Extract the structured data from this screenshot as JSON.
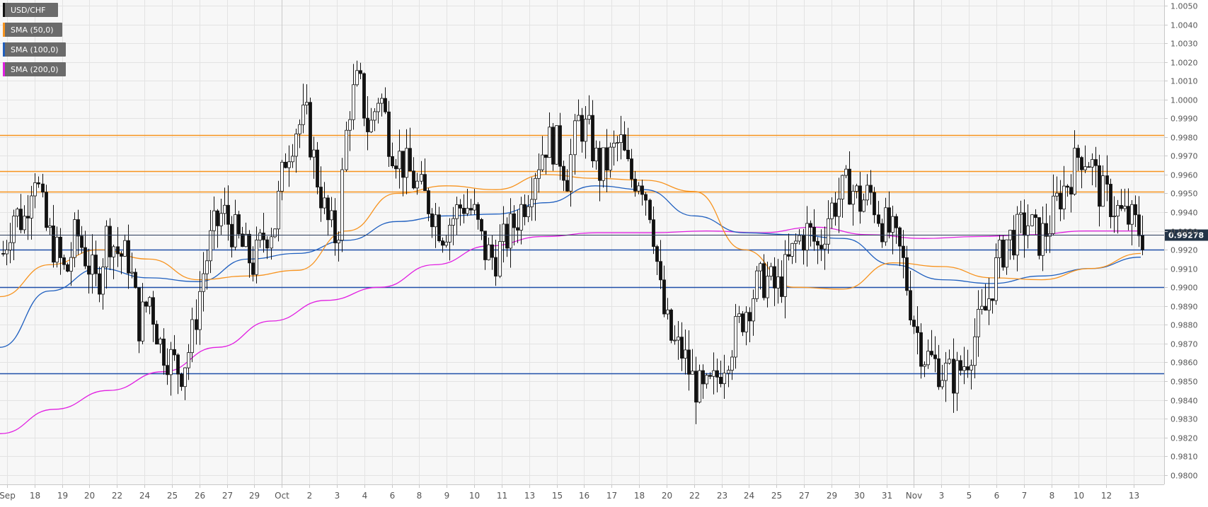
{
  "chart_data": {
    "type": "candlestick",
    "symbol": "USD/CHF",
    "legend": [
      {
        "label": "USD/CHF",
        "color": "#111111"
      },
      {
        "label": "SMA (50,0)",
        "color": "#f7931e"
      },
      {
        "label": "SMA (100,0)",
        "color": "#1f5fbf"
      },
      {
        "label": "SMA (200,0)",
        "color": "#e11ee1"
      }
    ],
    "legend_position": "top-left",
    "grid": true,
    "y_axis": {
      "position": "right",
      "range": [
        0.9795,
        1.0053
      ],
      "ticks": [
        "0.9800",
        "0.9810",
        "0.9820",
        "0.9830",
        "0.9840",
        "0.9850",
        "0.9860",
        "0.9870",
        "0.9880",
        "0.9890",
        "0.9900",
        "0.9910",
        "0.9920",
        "0.9930",
        "0.9940",
        "0.9950",
        "0.9960",
        "0.9970",
        "0.9980",
        "0.9990",
        "1.0000",
        "1.0010",
        "1.0020",
        "1.0030",
        "1.0040",
        "1.0050"
      ]
    },
    "x_axis": {
      "labels": [
        "Sep",
        "18",
        "19",
        "20",
        "22",
        "24",
        "25",
        "26",
        "27",
        "29",
        "Oct",
        "2",
        "3",
        "4",
        "6",
        "8",
        "9",
        "10",
        "11",
        "13",
        "15",
        "16",
        "17",
        "18",
        "20",
        "22",
        "23",
        "24",
        "25",
        "27",
        "29",
        "30",
        "31",
        "Nov",
        "3",
        "5",
        "6",
        "7",
        "8",
        "10",
        "12",
        "13"
      ],
      "separators": [
        "Oct",
        "Nov"
      ]
    },
    "current_price": {
      "label": "0.99278",
      "value": 0.99278
    },
    "horizontal_levels": [
      {
        "value": 0.9981,
        "color": "#f7931e"
      },
      {
        "value": 0.9962,
        "color": "#f7931e"
      },
      {
        "value": 0.9951,
        "color": "#f7931e"
      },
      {
        "value": 0.992,
        "color": "#1f4fa8"
      },
      {
        "value": 0.99,
        "color": "#1f4fa8"
      },
      {
        "value": 0.9854,
        "color": "#1f4fa8"
      }
    ],
    "price_path": [
      0.9918,
      0.994,
      0.9935,
      0.9965,
      0.9932,
      0.992,
      0.9906,
      0.993,
      0.9915,
      0.99,
      0.993,
      0.9918,
      0.9915,
      0.988,
      0.9895,
      0.987,
      0.9862,
      0.9855,
      0.987,
      0.9905,
      0.9928,
      0.994,
      0.993,
      0.992,
      0.9912,
      0.9928,
      0.9935,
      0.997,
      0.9985,
      0.999,
      0.996,
      0.9935,
      0.9925,
      0.9995,
      1.001,
      0.9982,
      1.0005,
      0.9978,
      0.9968,
      0.996,
      0.995,
      0.9942,
      0.993,
      0.9937,
      0.9945,
      0.994,
      0.992,
      0.9915,
      0.9925,
      0.9935,
      0.9948,
      0.9965,
      0.9978,
      0.9975,
      0.996,
      0.9988,
      0.9982,
      0.9962,
      0.9968,
      0.9978,
      0.9958,
      0.996,
      0.994,
      0.989,
      0.987,
      0.9865,
      0.985,
      0.9842,
      0.9848,
      0.9862,
      0.9875,
      0.9888,
      0.99,
      0.9905,
      0.9898,
      0.991,
      0.9925,
      0.993,
      0.992,
      0.994,
      0.9948,
      0.9955,
      0.9945,
      0.995,
      0.9935,
      0.9928,
      0.9915,
      0.9885,
      0.9865,
      0.986,
      0.9855,
      0.9852,
      0.986,
      0.9875,
      0.9888,
      0.991,
      0.9925,
      0.9928,
      0.9935,
      0.9925,
      0.9932,
      0.9948,
      0.9958,
      0.9972,
      0.9968,
      0.995,
      0.9945,
      0.9938,
      0.9935,
      0.9928
    ],
    "sma_50": [
      0.9895,
      0.9912,
      0.992,
      0.9915,
      0.9904,
      0.9906,
      0.9909,
      0.993,
      0.995,
      0.9954,
      0.9952,
      0.996,
      0.9958,
      0.9957,
      0.9951,
      0.992,
      0.99,
      0.9899,
      0.9913,
      0.9911,
      0.9905,
      0.9904,
      0.991,
      0.9918
    ],
    "sma_100": [
      0.9868,
      0.9898,
      0.991,
      0.9905,
      0.9903,
      0.9915,
      0.9918,
      0.9925,
      0.9935,
      0.9938,
      0.9939,
      0.9945,
      0.9954,
      0.9952,
      0.9938,
      0.9929,
      0.9928,
      0.9926,
      0.9912,
      0.9904,
      0.9902,
      0.9906,
      0.991,
      0.9916
    ],
    "sma_200": [
      0.9822,
      0.9835,
      0.9845,
      0.9855,
      0.9868,
      0.9882,
      0.9893,
      0.99,
      0.9912,
      0.9922,
      0.9927,
      0.9929,
      0.9929,
      0.993,
      0.9929,
      0.9932,
      0.9928,
      0.9926,
      0.9927,
      0.9928,
      0.993,
      0.993
    ]
  }
}
